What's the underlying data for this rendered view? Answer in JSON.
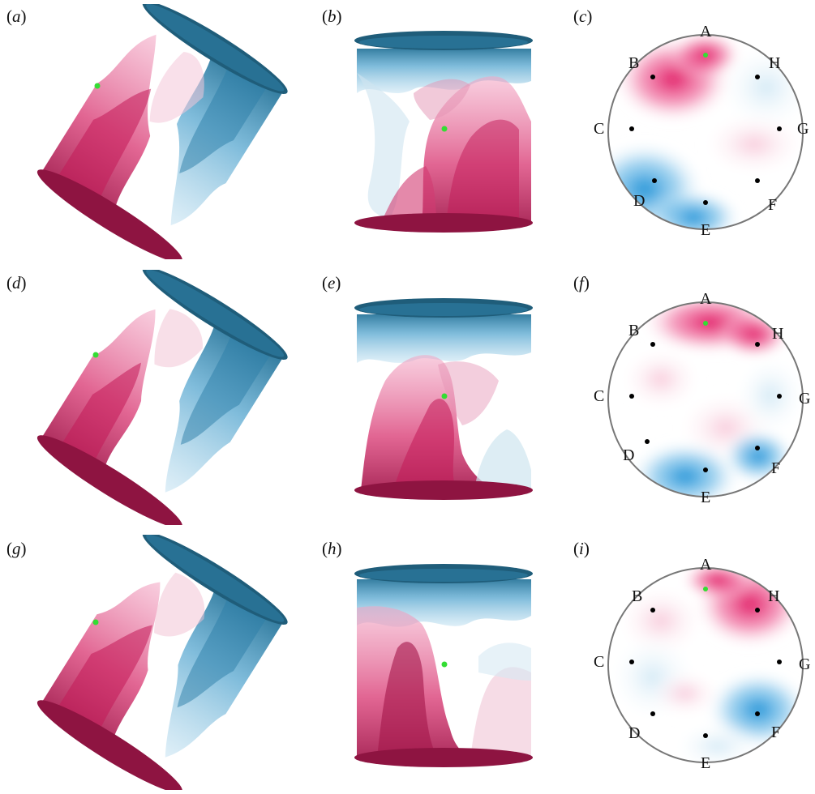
{
  "panels": [
    {
      "letter": "a"
    },
    {
      "letter": "b"
    },
    {
      "letter": "c"
    },
    {
      "letter": "d"
    },
    {
      "letter": "e"
    },
    {
      "letter": "f"
    },
    {
      "letter": "g"
    },
    {
      "letter": "h"
    },
    {
      "letter": "i"
    }
  ],
  "probes": [
    "A",
    "B",
    "C",
    "D",
    "E",
    "F",
    "G",
    "H"
  ],
  "colors": {
    "hot": "#e0135f",
    "cold": "#1a8fd6",
    "hot_dark": "#7d1238",
    "cold_dark": "#1f5d7a",
    "probe_dot": "#000000",
    "marker_green": "#33dd33",
    "outline": "#777777"
  }
}
